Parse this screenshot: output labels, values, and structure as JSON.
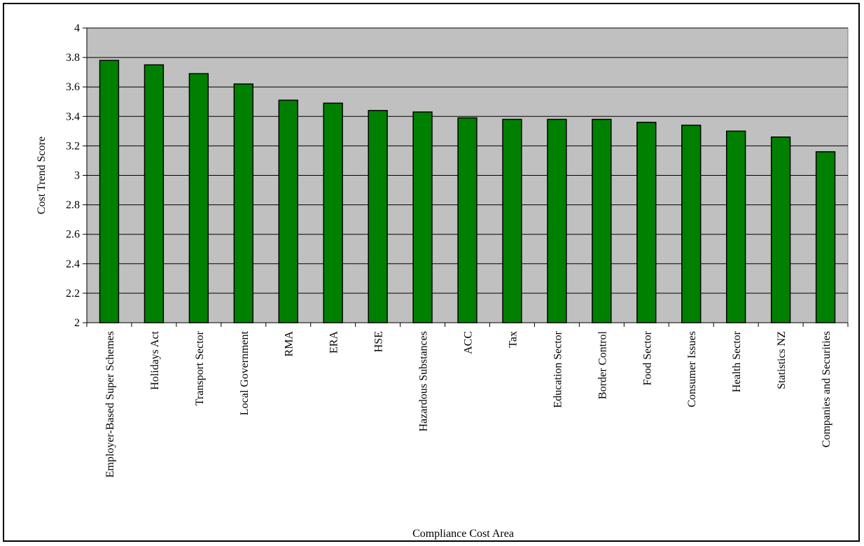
{
  "chart_data": {
    "type": "bar",
    "title": "",
    "xlabel": "Compliance Cost Area",
    "ylabel": "Cost Trend Score",
    "ylim": [
      2,
      4
    ],
    "ytick_step": 0.2,
    "yticks": [
      "2",
      "2.2",
      "2.4",
      "2.6",
      "2.8",
      "3",
      "3.2",
      "3.4",
      "3.6",
      "3.8",
      "4"
    ],
    "grid": true,
    "legend": "none",
    "categories": [
      "Employer-Based Super Schemes",
      "Holidays Act",
      "Transport Sector",
      "Local Government",
      "RMA",
      "ERA",
      "HSE",
      "Hazardous Substances",
      "ACC",
      "Tax",
      "Education Sector",
      "Border Control",
      "Food Sector",
      "Consumer Issues",
      "Health Sector",
      "Statistics NZ",
      "Companies and Securities"
    ],
    "values": [
      3.78,
      3.75,
      3.69,
      3.62,
      3.51,
      3.49,
      3.44,
      3.43,
      3.39,
      3.38,
      3.38,
      3.38,
      3.36,
      3.34,
      3.3,
      3.26,
      3.16
    ],
    "colors": {
      "bar_fill": "#008000",
      "bar_stroke": "#000000",
      "plot_background": "#c0c0c0",
      "gridline": "#000000"
    }
  }
}
